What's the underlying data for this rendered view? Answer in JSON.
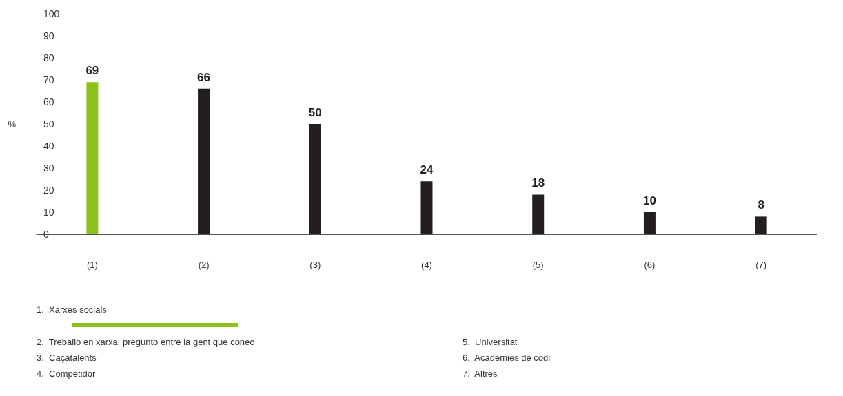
{
  "chart_data": {
    "type": "bar",
    "ylabel": "%",
    "categories": [
      "(1)",
      "(2)",
      "(3)",
      "(4)",
      "(5)",
      "(6)",
      "(7)"
    ],
    "values": [
      69,
      66,
      50,
      24,
      18,
      10,
      8
    ],
    "colors": [
      "#8cc21a",
      "#231f20",
      "#231f20",
      "#231f20",
      "#231f20",
      "#231f20",
      "#231f20"
    ],
    "ylim": [
      0,
      100
    ],
    "yticks": [
      0,
      10,
      20,
      30,
      40,
      50,
      60,
      70,
      80,
      90,
      100
    ],
    "grid": false,
    "data_labels": true,
    "annotations": [
      "1.  Xarxes socials",
      "2.  Treballo en xarxa, pregunto entre la gent que conec",
      "3.  Caçatalents",
      "4.  Competidor",
      "5.  Universitat",
      "6.  Acadèmies de codi",
      "7.  Altres"
    ]
  }
}
